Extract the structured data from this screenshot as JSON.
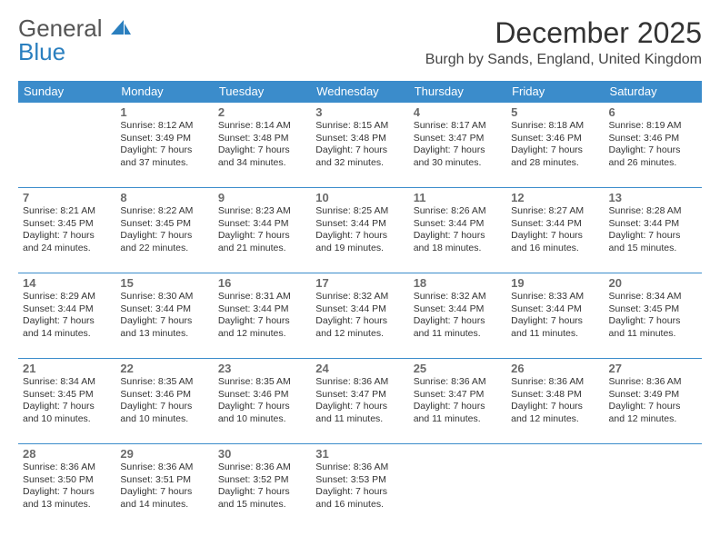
{
  "brand": {
    "word1": "General",
    "word2": "Blue"
  },
  "title": "December 2025",
  "location": "Burgh by Sands, England, United Kingdom",
  "colors": {
    "header_bg": "#3b8ccb",
    "header_text": "#ffffff",
    "border": "#3b8ccb",
    "daynum_color": "#6a6a6a",
    "body_text": "#333333",
    "logo_dark": "#555555",
    "logo_blue": "#2a7fbf",
    "background": "#ffffff"
  },
  "weekdays": [
    "Sunday",
    "Monday",
    "Tuesday",
    "Wednesday",
    "Thursday",
    "Friday",
    "Saturday"
  ],
  "weeks": [
    [
      null,
      {
        "d": "1",
        "sr": "8:12 AM",
        "ss": "3:49 PM",
        "dl": "7 hours and 37 minutes."
      },
      {
        "d": "2",
        "sr": "8:14 AM",
        "ss": "3:48 PM",
        "dl": "7 hours and 34 minutes."
      },
      {
        "d": "3",
        "sr": "8:15 AM",
        "ss": "3:48 PM",
        "dl": "7 hours and 32 minutes."
      },
      {
        "d": "4",
        "sr": "8:17 AM",
        "ss": "3:47 PM",
        "dl": "7 hours and 30 minutes."
      },
      {
        "d": "5",
        "sr": "8:18 AM",
        "ss": "3:46 PM",
        "dl": "7 hours and 28 minutes."
      },
      {
        "d": "6",
        "sr": "8:19 AM",
        "ss": "3:46 PM",
        "dl": "7 hours and 26 minutes."
      }
    ],
    [
      {
        "d": "7",
        "sr": "8:21 AM",
        "ss": "3:45 PM",
        "dl": "7 hours and 24 minutes."
      },
      {
        "d": "8",
        "sr": "8:22 AM",
        "ss": "3:45 PM",
        "dl": "7 hours and 22 minutes."
      },
      {
        "d": "9",
        "sr": "8:23 AM",
        "ss": "3:44 PM",
        "dl": "7 hours and 21 minutes."
      },
      {
        "d": "10",
        "sr": "8:25 AM",
        "ss": "3:44 PM",
        "dl": "7 hours and 19 minutes."
      },
      {
        "d": "11",
        "sr": "8:26 AM",
        "ss": "3:44 PM",
        "dl": "7 hours and 18 minutes."
      },
      {
        "d": "12",
        "sr": "8:27 AM",
        "ss": "3:44 PM",
        "dl": "7 hours and 16 minutes."
      },
      {
        "d": "13",
        "sr": "8:28 AM",
        "ss": "3:44 PM",
        "dl": "7 hours and 15 minutes."
      }
    ],
    [
      {
        "d": "14",
        "sr": "8:29 AM",
        "ss": "3:44 PM",
        "dl": "7 hours and 14 minutes."
      },
      {
        "d": "15",
        "sr": "8:30 AM",
        "ss": "3:44 PM",
        "dl": "7 hours and 13 minutes."
      },
      {
        "d": "16",
        "sr": "8:31 AM",
        "ss": "3:44 PM",
        "dl": "7 hours and 12 minutes."
      },
      {
        "d": "17",
        "sr": "8:32 AM",
        "ss": "3:44 PM",
        "dl": "7 hours and 12 minutes."
      },
      {
        "d": "18",
        "sr": "8:32 AM",
        "ss": "3:44 PM",
        "dl": "7 hours and 11 minutes."
      },
      {
        "d": "19",
        "sr": "8:33 AM",
        "ss": "3:44 PM",
        "dl": "7 hours and 11 minutes."
      },
      {
        "d": "20",
        "sr": "8:34 AM",
        "ss": "3:45 PM",
        "dl": "7 hours and 11 minutes."
      }
    ],
    [
      {
        "d": "21",
        "sr": "8:34 AM",
        "ss": "3:45 PM",
        "dl": "7 hours and 10 minutes."
      },
      {
        "d": "22",
        "sr": "8:35 AM",
        "ss": "3:46 PM",
        "dl": "7 hours and 10 minutes."
      },
      {
        "d": "23",
        "sr": "8:35 AM",
        "ss": "3:46 PM",
        "dl": "7 hours and 10 minutes."
      },
      {
        "d": "24",
        "sr": "8:36 AM",
        "ss": "3:47 PM",
        "dl": "7 hours and 11 minutes."
      },
      {
        "d": "25",
        "sr": "8:36 AM",
        "ss": "3:47 PM",
        "dl": "7 hours and 11 minutes."
      },
      {
        "d": "26",
        "sr": "8:36 AM",
        "ss": "3:48 PM",
        "dl": "7 hours and 12 minutes."
      },
      {
        "d": "27",
        "sr": "8:36 AM",
        "ss": "3:49 PM",
        "dl": "7 hours and 12 minutes."
      }
    ],
    [
      {
        "d": "28",
        "sr": "8:36 AM",
        "ss": "3:50 PM",
        "dl": "7 hours and 13 minutes."
      },
      {
        "d": "29",
        "sr": "8:36 AM",
        "ss": "3:51 PM",
        "dl": "7 hours and 14 minutes."
      },
      {
        "d": "30",
        "sr": "8:36 AM",
        "ss": "3:52 PM",
        "dl": "7 hours and 15 minutes."
      },
      {
        "d": "31",
        "sr": "8:36 AM",
        "ss": "3:53 PM",
        "dl": "7 hours and 16 minutes."
      },
      null,
      null,
      null
    ]
  ],
  "labels": {
    "sunrise": "Sunrise: ",
    "sunset": "Sunset: ",
    "daylight": "Daylight: "
  }
}
